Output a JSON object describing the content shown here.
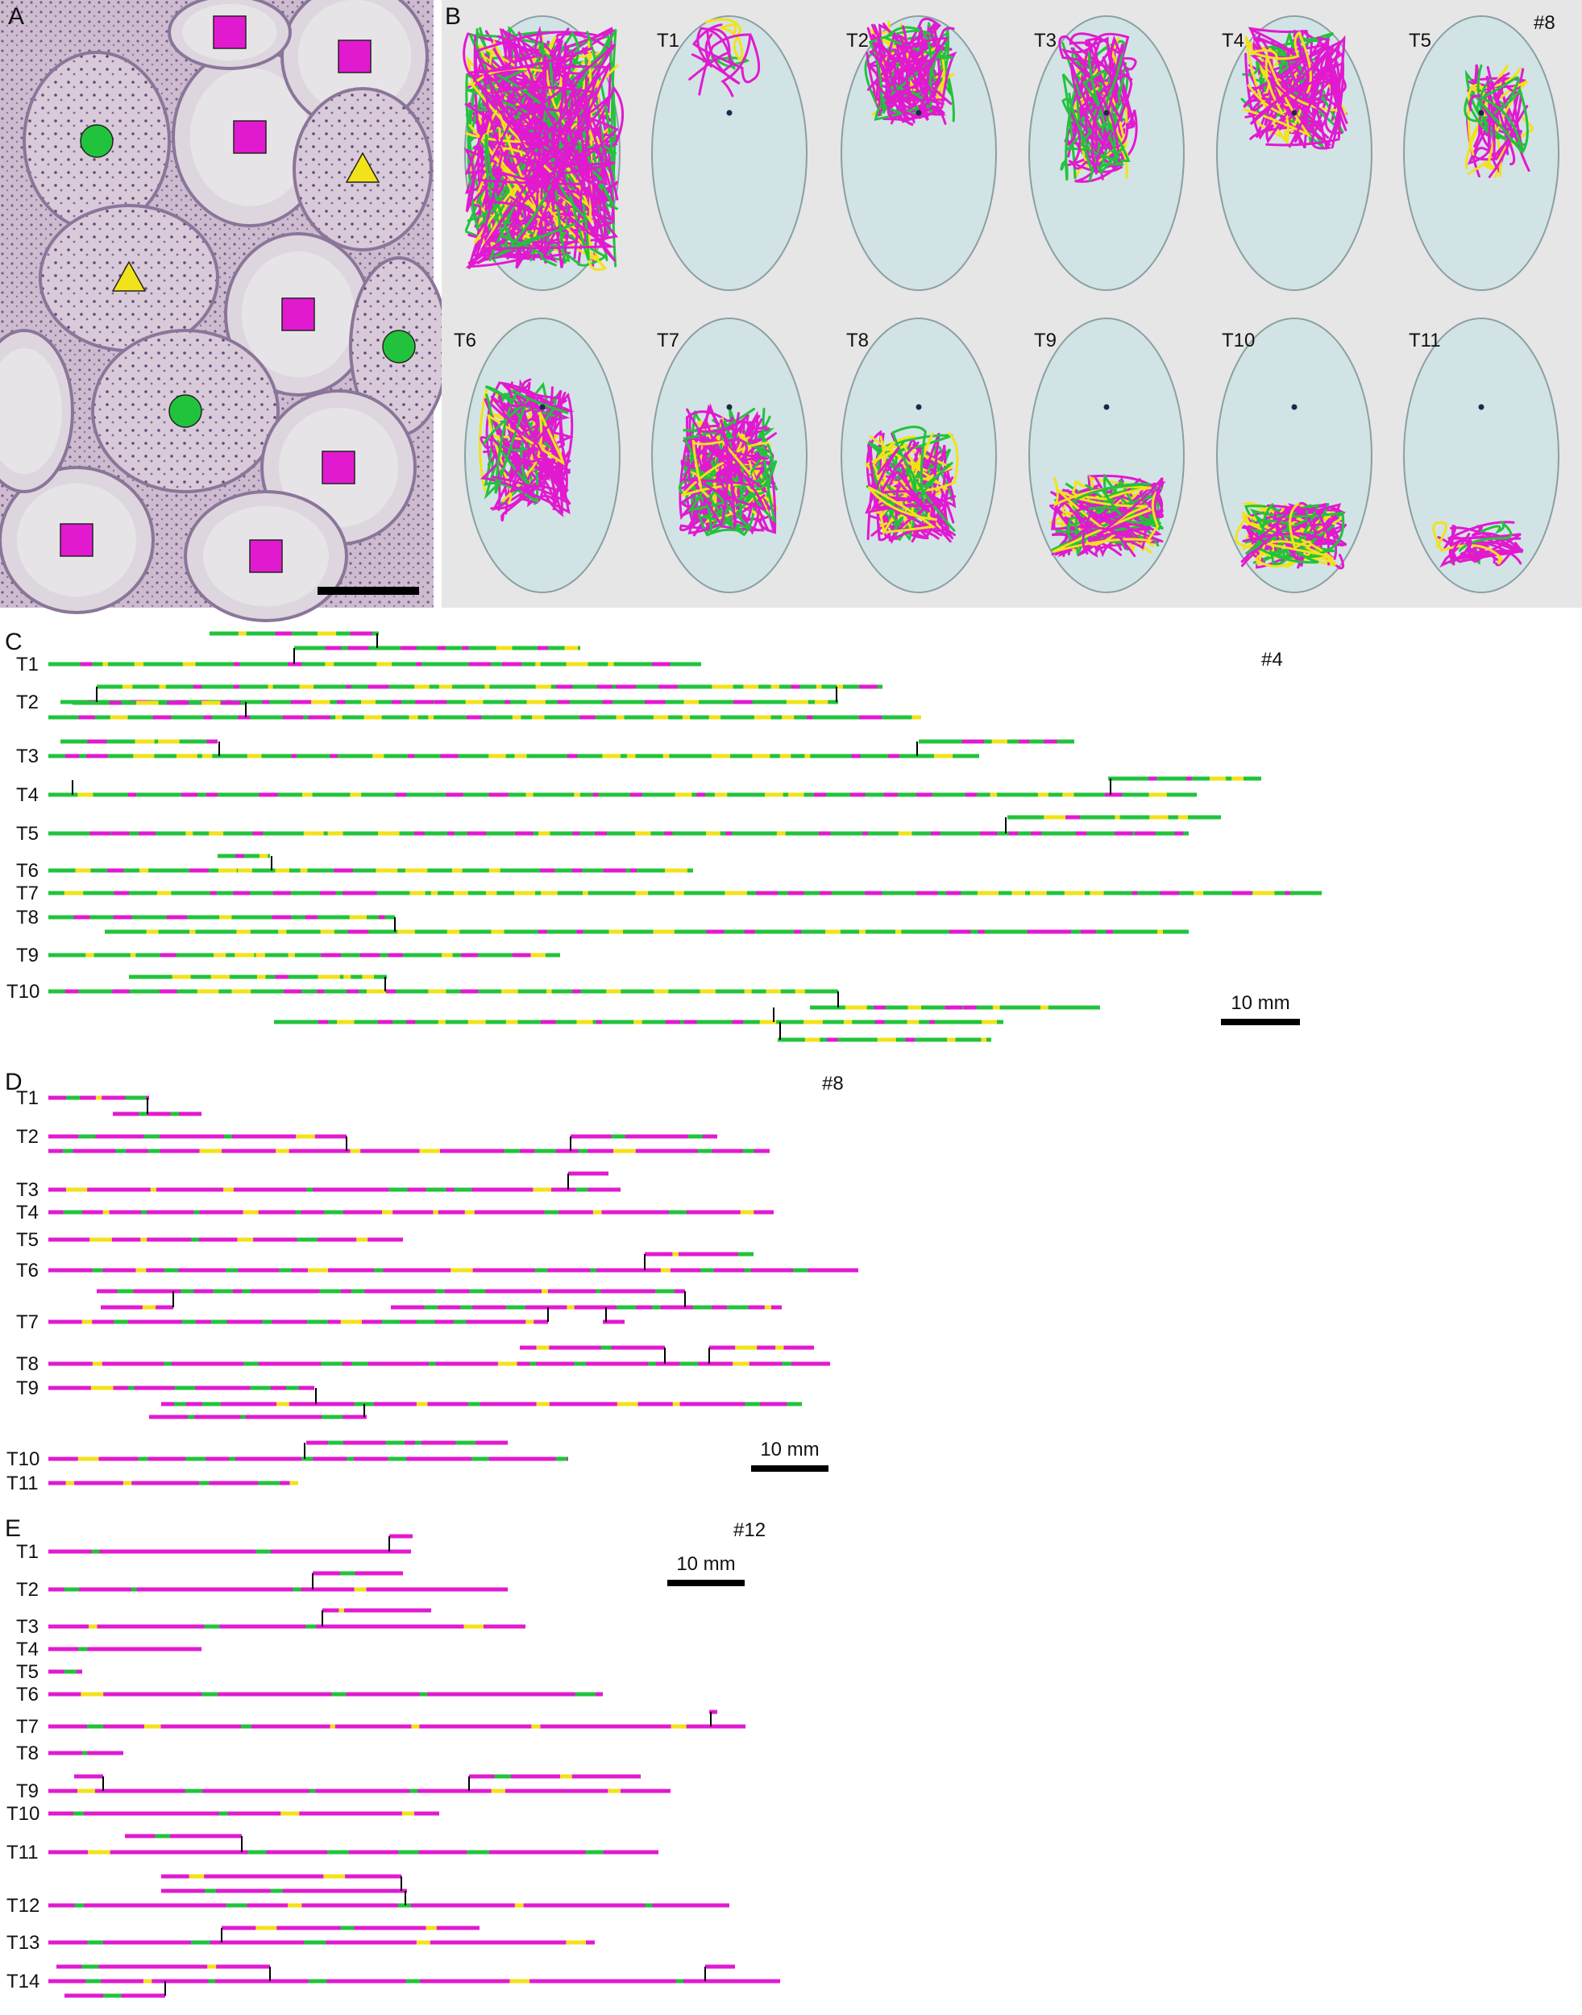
{
  "panels": {
    "A": {
      "label": "A"
    },
    "B": {
      "label": "B",
      "specimen": "#8",
      "tubule_labels": [
        "T1",
        "T2",
        "T3",
        "T4",
        "T5",
        "T6",
        "T7",
        "T8",
        "T9",
        "T10",
        "T11"
      ]
    },
    "C": {
      "label": "C",
      "specimen": "#4",
      "scale_label": "10 mm",
      "row_labels": [
        "T1",
        "T2",
        "T3",
        "T4",
        "T5",
        "T6",
        "T7",
        "T8",
        "T9",
        "T10"
      ]
    },
    "D": {
      "label": "D",
      "specimen": "#8",
      "scale_label": "10 mm",
      "row_labels": [
        "T1",
        "T2",
        "T3",
        "T4",
        "T5",
        "T6",
        "T7",
        "T8",
        "T9",
        "T10",
        "T11"
      ]
    },
    "E": {
      "label": "E",
      "specimen": "#12",
      "scale_label": "10 mm",
      "row_labels": [
        "T1",
        "T2",
        "T3",
        "T4",
        "T5",
        "T6",
        "T7",
        "T8",
        "T9",
        "T10",
        "T11",
        "T12",
        "T13",
        "T14"
      ]
    }
  },
  "colors": {
    "green": "#22c33c",
    "magenta": "#e11ad0",
    "yellow": "#f2e21a",
    "histology": "#c9b6cc",
    "tissue_bg": "#e3e3e3",
    "ellipsoid": "#cfe2e4"
  },
  "icons": [
    "green-circle-icon",
    "yellow-triangle-icon",
    "magenta-square-icon"
  ]
}
